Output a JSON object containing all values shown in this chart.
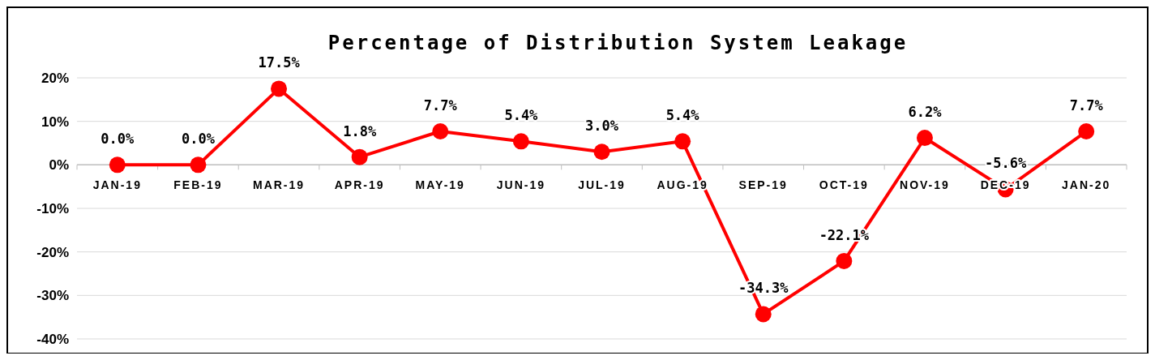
{
  "chart_data": {
    "type": "line",
    "title": "Percentage of Distribution System Leakage",
    "categories": [
      "JAN-19",
      "FEB-19",
      "MAR-19",
      "APR-19",
      "MAY-19",
      "JUN-19",
      "JUL-19",
      "AUG-19",
      "SEP-19",
      "OCT-19",
      "NOV-19",
      "DEC-19",
      "JAN-20"
    ],
    "series": [
      {
        "color": "#ff0000",
        "values": [
          0,
          0,
          17.5,
          1.8,
          7.7,
          5.4,
          3.0,
          5.4,
          -34.3,
          -22.1,
          6.2,
          -5.6,
          7.7
        ],
        "value_labels": [
          "0.0%",
          "0.0%",
          "17.5%",
          "1.8%",
          "7.7%",
          "5.4%",
          "3.0%",
          "5.4%",
          "-34.3%",
          "-22.1%",
          "6.2%",
          "-5.6%",
          "7.7%"
        ]
      }
    ],
    "ylim": [
      -40,
      20
    ],
    "yticks": [
      {
        "value": -40,
        "label": "-40%"
      },
      {
        "value": -30,
        "label": "-30%"
      },
      {
        "value": -20,
        "label": "-20%"
      },
      {
        "value": -10,
        "label": "-10%"
      },
      {
        "value": 0,
        "label": "0%"
      },
      {
        "value": 10,
        "label": "10%"
      },
      {
        "value": 20,
        "label": "20%"
      }
    ],
    "grid": "y",
    "marker": "circle",
    "line_style": "solid"
  }
}
